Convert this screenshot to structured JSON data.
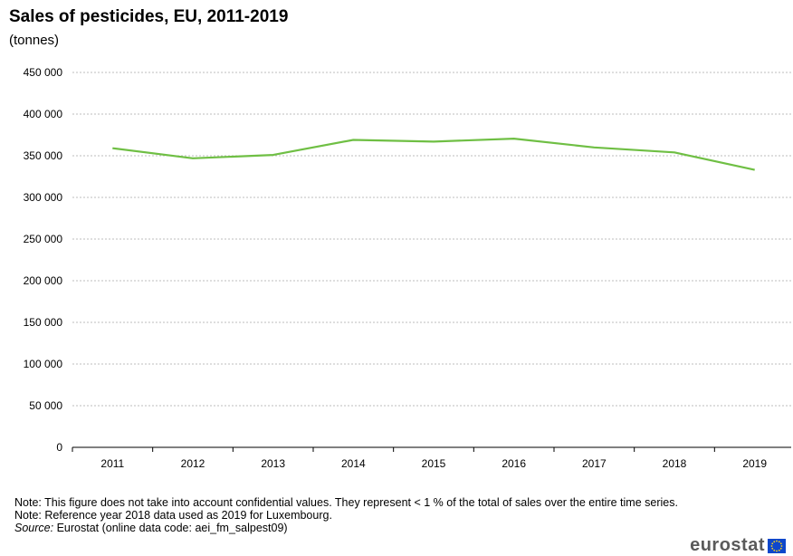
{
  "header": {
    "title": "Sales of pesticides, EU, 2011-2019",
    "subtitle": "(tonnes)"
  },
  "chart_data": {
    "type": "line",
    "title": "Sales of pesticides, EU, 2011-2019",
    "subtitle": "(tonnes)",
    "xlabel": "",
    "ylabel": "",
    "x": [
      "2011",
      "2012",
      "2013",
      "2014",
      "2015",
      "2016",
      "2017",
      "2018",
      "2019"
    ],
    "series": [
      {
        "values": [
          359000,
          347000,
          351000,
          369000,
          367000,
          370500,
          360000,
          354000,
          333000
        ]
      }
    ],
    "ylim": [
      0,
      450000
    ],
    "yticks": [
      0,
      50000,
      100000,
      150000,
      200000,
      250000,
      300000,
      350000,
      400000,
      450000
    ],
    "ytick_labels": [
      "0",
      "50 000",
      "100 000",
      "150 000",
      "200 000",
      "250 000",
      "300 000",
      "350 000",
      "400 000",
      "450 000"
    ],
    "grid": true,
    "legend": "none",
    "line_color": "#6fbf44",
    "grid_color": "#bdbdbd"
  },
  "notes": {
    "note1": "Note: This figure does not take into account confidential values. They represent < 1 % of the total of sales over the entire time series.",
    "note2": "Note: Reference year 2018 data used as 2019 for Luxembourg.",
    "source_label": "Source:",
    "source_text": " Eurostat (online data code: aei_fm_salpest09)"
  },
  "branding": {
    "logo_text": "eurostat",
    "flag_color": "#0e47cb",
    "flag_icon": "eu-flag-icon"
  }
}
